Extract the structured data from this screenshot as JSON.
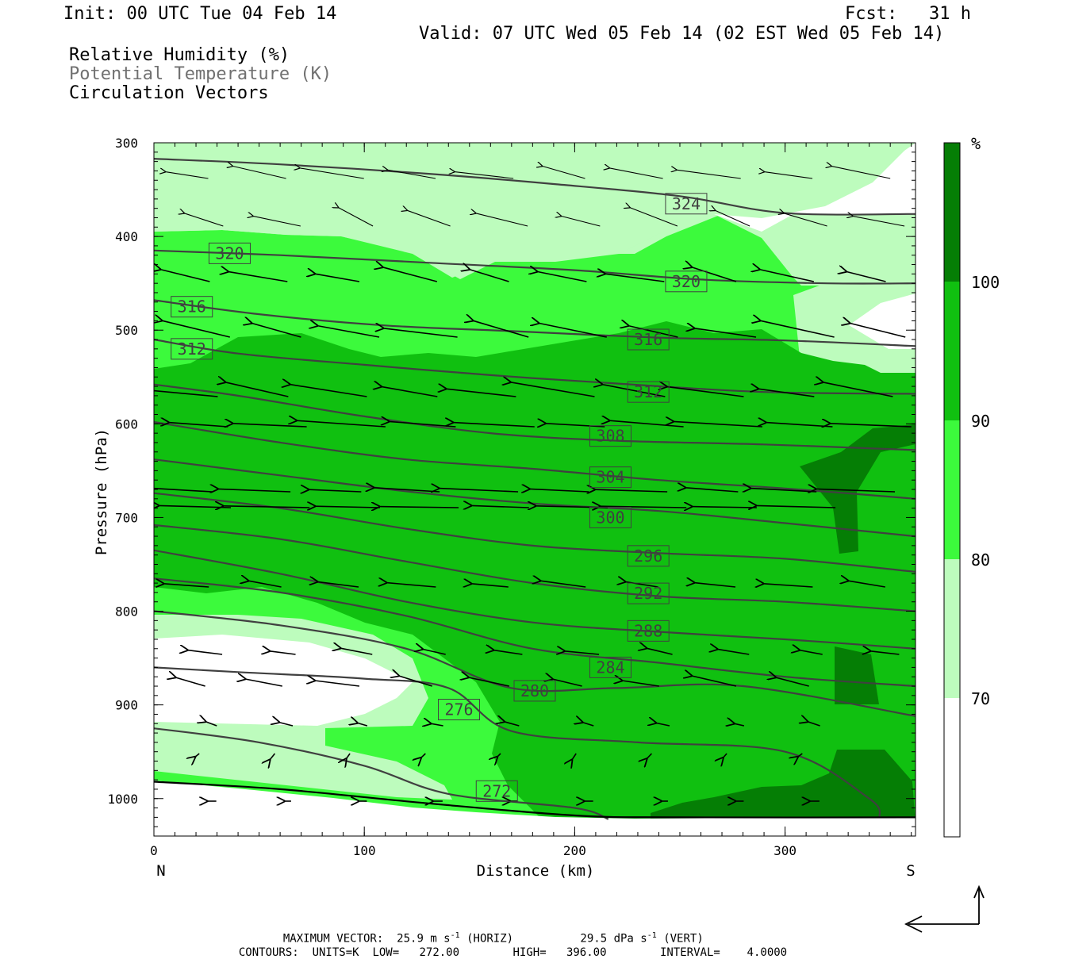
{
  "header": {
    "init": "Init: 00 UTC Tue 04 Feb 14",
    "fcst": "Fcst:   31 h",
    "valid": "Valid: 07 UTC Wed 05 Feb 14 (02 EST Wed 05 Feb 14)"
  },
  "legend_titles": {
    "rh": "Relative Humidity (%)",
    "theta": "Potential Temperature (K)",
    "vectors": "Circulation Vectors"
  },
  "colors": {
    "rh_70": "#bdfcbd",
    "rh_80": "#3cfa3c",
    "rh_90": "#10c010",
    "rh_100": "#057e05",
    "theta_line": "#404040",
    "theta_label_text": "#404040"
  },
  "chart_data": {
    "type": "cross-section",
    "xlabel": "Distance (km)",
    "ylabel": "Pressure (hPa)",
    "xlim": [
      0,
      362
    ],
    "ylim": [
      1040,
      300
    ],
    "x_ticks": [
      0,
      100,
      200,
      300
    ],
    "y_ticks": [
      300,
      400,
      500,
      600,
      700,
      800,
      900,
      1000
    ],
    "x_endpoint_labels": {
      "left": "N",
      "right": "S"
    },
    "colorbar": {
      "unit": "%",
      "levels": [
        70,
        80,
        90,
        100
      ]
    },
    "isentrope_labels": [
      {
        "value": "324",
        "x": 253,
        "p": 365
      },
      {
        "value": "320",
        "x": 36,
        "p": 418
      },
      {
        "value": "320",
        "x": 253,
        "p": 448
      },
      {
        "value": "316",
        "x": 18,
        "p": 475
      },
      {
        "value": "316",
        "x": 235,
        "p": 510
      },
      {
        "value": "312",
        "x": 18,
        "p": 520
      },
      {
        "value": "312",
        "x": 235,
        "p": 566
      },
      {
        "value": "308",
        "x": 217,
        "p": 613
      },
      {
        "value": "304",
        "x": 217,
        "p": 657
      },
      {
        "value": "300",
        "x": 217,
        "p": 700
      },
      {
        "value": "296",
        "x": 235,
        "p": 741
      },
      {
        "value": "292",
        "x": 235,
        "p": 781
      },
      {
        "value": "288",
        "x": 235,
        "p": 821
      },
      {
        "value": "284",
        "x": 217,
        "p": 860
      },
      {
        "value": "280",
        "x": 181,
        "p": 885
      },
      {
        "value": "276",
        "x": 145,
        "p": 905
      },
      {
        "value": "272",
        "x": 163,
        "p": 992
      }
    ],
    "isentropes": [
      {
        "value": 324,
        "points": [
          [
            0,
            317
          ],
          [
            60,
            323
          ],
          [
            130,
            333
          ],
          [
            190,
            344
          ],
          [
            250,
            357
          ],
          [
            300,
            375
          ],
          [
            362,
            376
          ]
        ]
      },
      {
        "value": 320,
        "points": [
          [
            0,
            415
          ],
          [
            60,
            420
          ],
          [
            130,
            428
          ],
          [
            200,
            436
          ],
          [
            260,
            446
          ],
          [
            320,
            450
          ],
          [
            362,
            450
          ]
        ]
      },
      {
        "value": 316,
        "points": [
          [
            0,
            468
          ],
          [
            50,
            483
          ],
          [
            110,
            495
          ],
          [
            170,
            501
          ],
          [
            240,
            508
          ],
          [
            300,
            511
          ],
          [
            362,
            517
          ]
        ]
      },
      {
        "value": 312,
        "points": [
          [
            0,
            510
          ],
          [
            40,
            525
          ],
          [
            100,
            537
          ],
          [
            160,
            548
          ],
          [
            220,
            557
          ],
          [
            290,
            566
          ],
          [
            362,
            568
          ]
        ]
      },
      {
        "value": 308,
        "points": [
          [
            0,
            558
          ],
          [
            40,
            570
          ],
          [
            100,
            592
          ],
          [
            160,
            610
          ],
          [
            220,
            618
          ],
          [
            290,
            622
          ],
          [
            362,
            628
          ]
        ]
      },
      {
        "value": 304,
        "points": [
          [
            0,
            598
          ],
          [
            60,
            620
          ],
          [
            120,
            638
          ],
          [
            180,
            648
          ],
          [
            240,
            660
          ],
          [
            300,
            669
          ],
          [
            362,
            680
          ]
        ]
      },
      {
        "value": 300,
        "points": [
          [
            0,
            638
          ],
          [
            60,
            655
          ],
          [
            120,
            672
          ],
          [
            180,
            685
          ],
          [
            240,
            693
          ],
          [
            300,
            706
          ],
          [
            362,
            720
          ]
        ]
      },
      {
        "value": 296,
        "points": [
          [
            0,
            674
          ],
          [
            60,
            690
          ],
          [
            120,
            712
          ],
          [
            180,
            730
          ],
          [
            240,
            738
          ],
          [
            300,
            744
          ],
          [
            362,
            758
          ]
        ]
      },
      {
        "value": 292,
        "points": [
          [
            0,
            708
          ],
          [
            60,
            723
          ],
          [
            120,
            747
          ],
          [
            180,
            770
          ],
          [
            240,
            784
          ],
          [
            300,
            790
          ],
          [
            362,
            800
          ]
        ]
      },
      {
        "value": 288,
        "points": [
          [
            0,
            735
          ],
          [
            60,
            760
          ],
          [
            120,
            790
          ],
          [
            180,
            812
          ],
          [
            240,
            822
          ],
          [
            300,
            830
          ],
          [
            362,
            840
          ]
        ]
      },
      {
        "value": 284,
        "points": [
          [
            0,
            765
          ],
          [
            60,
            780
          ],
          [
            120,
            805
          ],
          [
            180,
            840
          ],
          [
            240,
            855
          ],
          [
            300,
            870
          ],
          [
            362,
            880
          ]
        ]
      },
      {
        "value": 280,
        "points": [
          [
            0,
            800
          ],
          [
            60,
            815
          ],
          [
            120,
            840
          ],
          [
            170,
            882
          ],
          [
            220,
            882
          ],
          [
            280,
            880
          ],
          [
            362,
            912
          ]
        ]
      },
      {
        "value": 276,
        "points": [
          [
            0,
            860
          ],
          [
            40,
            865
          ],
          [
            100,
            872
          ],
          [
            140,
            882
          ],
          [
            170,
            928
          ],
          [
            230,
            940
          ],
          [
            300,
            950
          ],
          [
            340,
            1000
          ],
          [
            345,
            1020
          ]
        ]
      },
      {
        "value": 272,
        "points": [
          [
            0,
            925
          ],
          [
            50,
            940
          ],
          [
            100,
            965
          ],
          [
            140,
            995
          ],
          [
            200,
            1010
          ],
          [
            216,
            1022
          ]
        ]
      }
    ],
    "surface": {
      "points": [
        [
          0,
          982
        ],
        [
          60,
          990
        ],
        [
          130,
          1005
        ],
        [
          200,
          1018
        ],
        [
          250,
          1020
        ],
        [
          362,
          1020
        ]
      ]
    },
    "vector_scale": {
      "max_horizontal": "25.9",
      "max_horizontal_units": "m s",
      "max_vertical": "29.5",
      "max_vertical_units": "dPa s"
    },
    "contours": {
      "units": "K",
      "low": "272.00",
      "high": "396.00",
      "interval": "4.0000"
    }
  },
  "footer": {
    "line1_prefix": "MAXIMUM VECTOR:",
    "horiz_label": "(HORIZ)",
    "vert_label": "(VERT)",
    "contours_prefix": "CONTOURS:",
    "units_prefix": "UNITS=",
    "low_prefix": "LOW=",
    "high_prefix": "HIGH=",
    "interval_prefix": "INTERVAL="
  }
}
